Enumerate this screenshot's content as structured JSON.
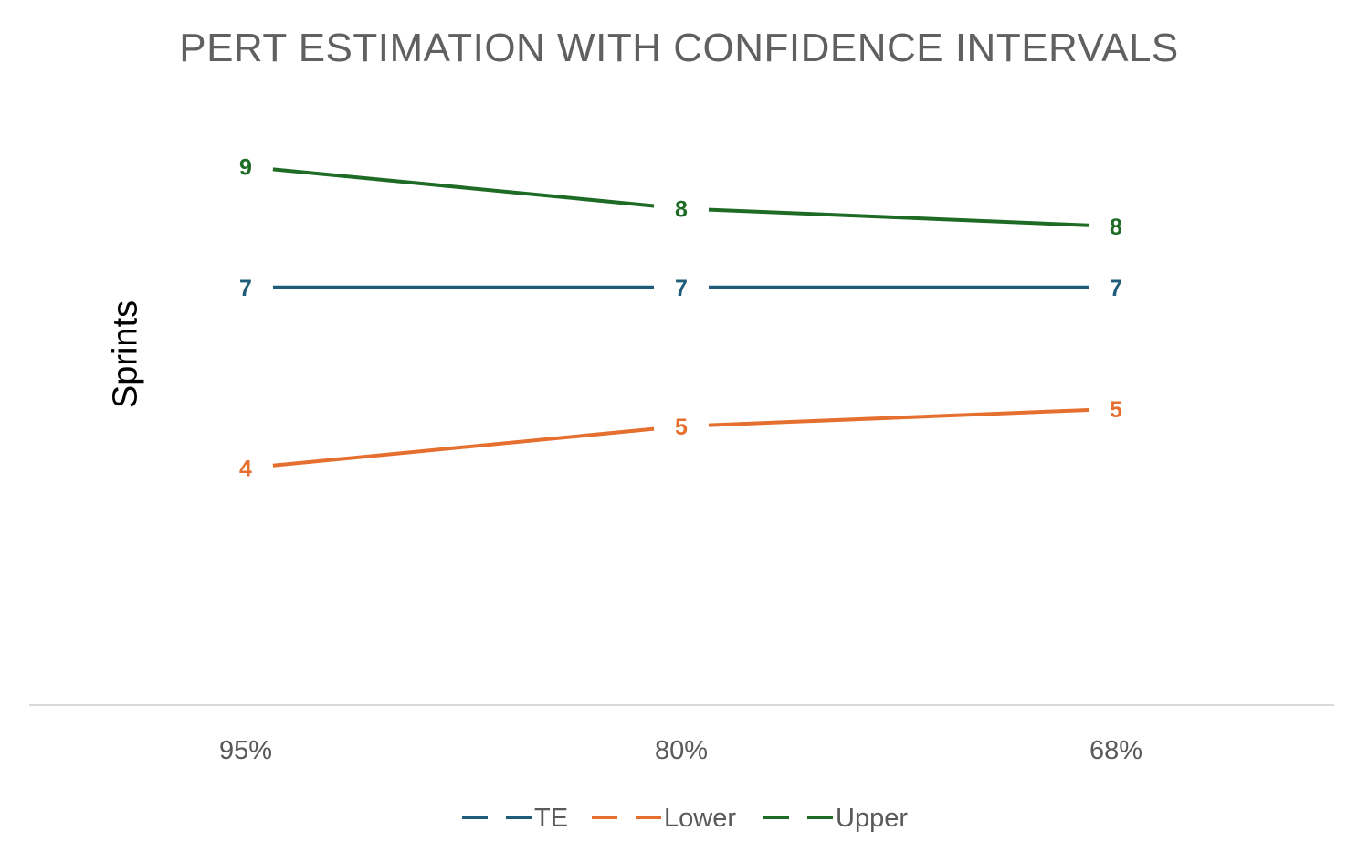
{
  "chart_data": {
    "type": "line",
    "title": "PERT ESTIMATION WITH CONFIDENCE INTERVALS",
    "xlabel": "",
    "ylabel": "Sprints",
    "categories": [
      "95%",
      "80%",
      "68%"
    ],
    "ylim": [
      0,
      11
    ],
    "grid": false,
    "legend_position": "bottom",
    "series": [
      {
        "name": "TE",
        "color": "#1F5C7A",
        "values": [
          6.98,
          6.98,
          6.98
        ],
        "labels": [
          "7",
          "7",
          "7"
        ]
      },
      {
        "name": "Lower",
        "color": "#E46F2F",
        "values": [
          3.96,
          4.66,
          4.95
        ],
        "labels": [
          "4",
          "5",
          "5"
        ]
      },
      {
        "name": "Upper",
        "color": "#1E6B26",
        "values": [
          9.0,
          8.3,
          8.0
        ],
        "labels": [
          "9",
          "8",
          "8"
        ]
      }
    ]
  }
}
